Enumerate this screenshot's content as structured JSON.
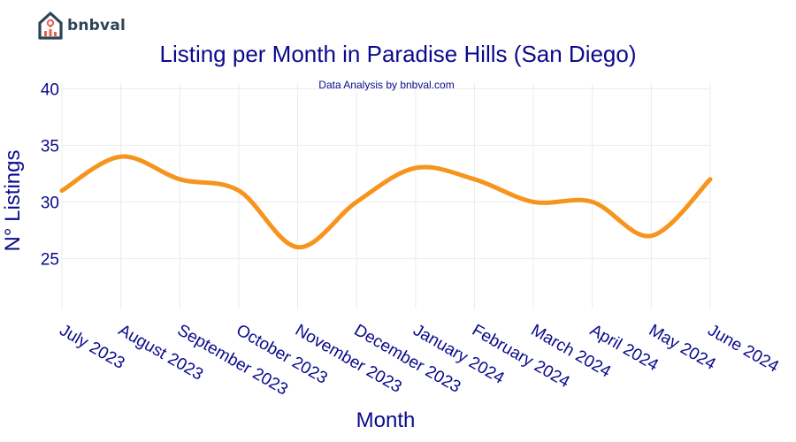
{
  "brand": {
    "name": "bnbval",
    "color": "#2d4456",
    "accent": "#e8604c"
  },
  "chart_data": {
    "type": "line",
    "title": "Listing per Month in Paradise Hills (San Diego)",
    "subtitle": "Data Analysis by bnbval.com",
    "xlabel": "Month",
    "ylabel": "N° Listings",
    "categories": [
      "July 2023",
      "August 2023",
      "September 2023",
      "October 2023",
      "November 2023",
      "December 2023",
      "January 2024",
      "February 2024",
      "March 2024",
      "April 2024",
      "May 2024",
      "June 2024"
    ],
    "series": [
      {
        "values": [
          31,
          34,
          32,
          31,
          26,
          30,
          33,
          32,
          30,
          30,
          27,
          32
        ],
        "color": "#f7941d"
      }
    ],
    "ylim": [
      20.5,
      40.5
    ],
    "yticks": [
      25,
      30,
      35,
      40
    ],
    "grid": true,
    "text_color": "#0a0a8c"
  }
}
